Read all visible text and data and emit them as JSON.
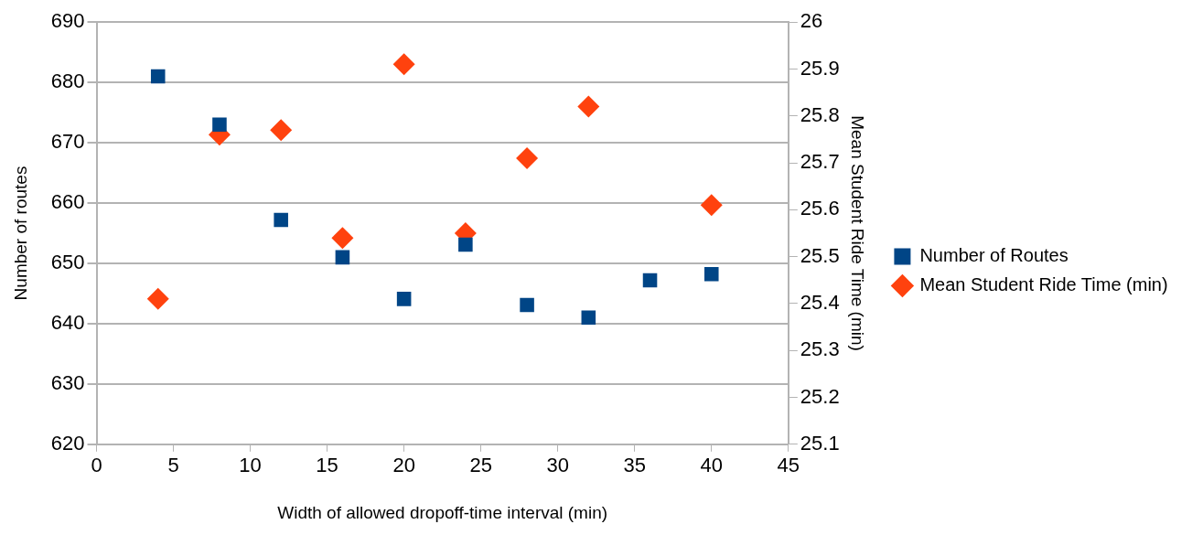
{
  "chart_data": {
    "type": "scatter",
    "xlabel": "Width of allowed dropoff-time interval (min)",
    "ylabel": "Number of routes",
    "y2label": "Mean Student Ride Time (min)",
    "x": [
      4,
      8,
      12,
      16,
      20,
      24,
      28,
      32,
      36,
      40
    ],
    "series": [
      {
        "name": "Number of Routes",
        "color": "#004586",
        "marker": "square",
        "values": [
          681,
          673,
          657.2,
          651,
          644.1,
          653.1,
          643.1,
          641,
          647.2,
          648.2
        ]
      },
      {
        "name": "Mean Student Ride Time (min)",
        "color": "#ff420e",
        "marker": "diamond",
        "axis": "y2",
        "values": [
          25.41,
          25.76,
          25.77,
          25.54,
          25.91,
          25.55,
          25.71,
          25.82,
          null,
          25.61
        ]
      }
    ],
    "xlim": [
      0,
      45
    ],
    "xticks": [
      0,
      5,
      10,
      15,
      20,
      25,
      30,
      35,
      40,
      45
    ],
    "ylim": [
      620,
      690
    ],
    "yticks": [
      620,
      630,
      640,
      650,
      660,
      670,
      680,
      690
    ],
    "y2lim": [
      25.1,
      26
    ],
    "y2ticks": [
      25.1,
      25.2,
      25.3,
      25.4,
      25.5,
      25.6,
      25.7,
      25.8,
      25.9,
      26
    ],
    "grid": "y",
    "legend": "right"
  }
}
